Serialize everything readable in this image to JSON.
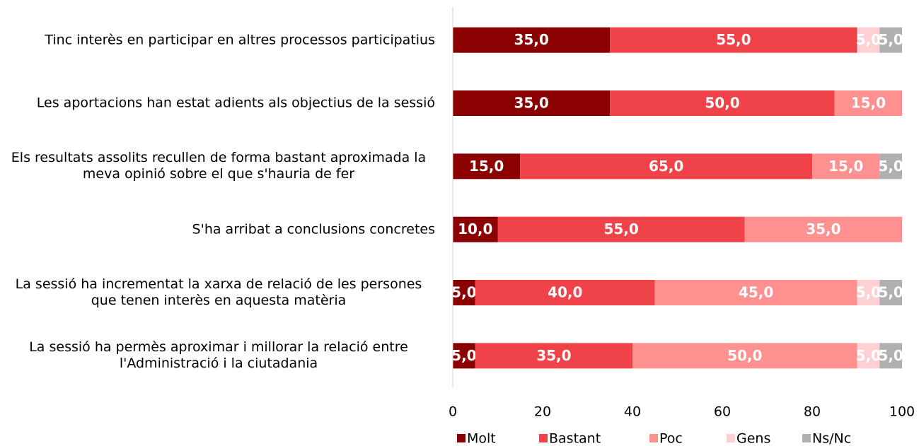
{
  "chart_data": {
    "type": "stacked_barh",
    "categories": [
      "Tinc interès en participar en altres processos participatius",
      "Les aportacions han estat adients als objectius de la sessió",
      "Els resultats assolits recullen de forma bastant aproximada la meva opinió sobre el que s'hauria de fer",
      "S'ha arribat a conclusions concretes",
      "La sessió ha incrementat la xarxa de relació de les persones que tenen interès en aquesta matèria",
      "La sessió ha permès aproximar i millorar la relació entre l'Administració i la ciutadania"
    ],
    "series": [
      {
        "name": "Molt",
        "color": "#8b0000",
        "values": [
          35,
          35,
          15,
          10,
          5,
          5
        ],
        "value_labels": [
          "35,0",
          "35,0",
          "15,0",
          "10,0",
          "5,0",
          "5,0"
        ]
      },
      {
        "name": "Bastant",
        "color": "#ef4349",
        "values": [
          55,
          50,
          65,
          55,
          40,
          35
        ],
        "value_labels": [
          "55,0",
          "50,0",
          "65,0",
          "55,0",
          "40,0",
          "35,0"
        ]
      },
      {
        "name": "Poc",
        "color": "#ff9191",
        "values": [
          0,
          15,
          15,
          35,
          45,
          50
        ],
        "value_labels": [
          null,
          "15,0",
          "15,0",
          "35,0",
          "45,0",
          "50,0"
        ]
      },
      {
        "name": "Gens",
        "color": "#ffd0d4",
        "values": [
          5,
          0,
          0,
          0,
          5,
          5
        ],
        "value_labels": [
          "5,0",
          null,
          null,
          null,
          "5,0",
          "5,0"
        ]
      },
      {
        "name": "Ns/Nc",
        "color": "#b0b0b0",
        "values": [
          5,
          0,
          5,
          0,
          5,
          5
        ],
        "value_labels": [
          "5,0",
          null,
          "5,0",
          null,
          "5,0",
          "5,0"
        ]
      }
    ],
    "xlim": [
      0,
      100
    ],
    "xticks": [
      0,
      20,
      40,
      60,
      80,
      100
    ],
    "legend": "bottom"
  }
}
